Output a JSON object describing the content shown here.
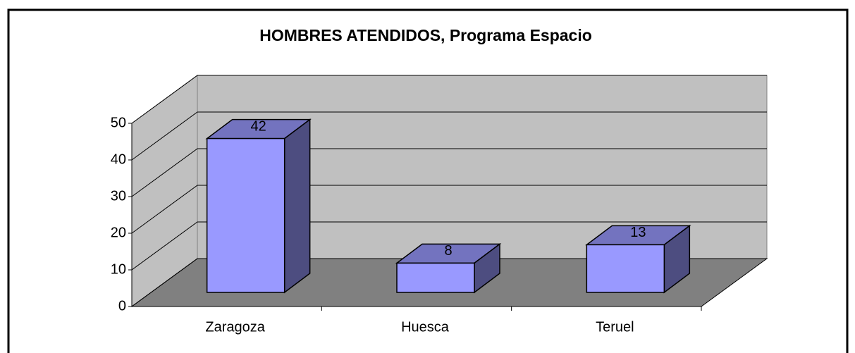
{
  "chart_data": {
    "type": "bar3d",
    "title": "HOMBRES ATENDIDOS, Programa Espacio",
    "categories": [
      "Zaragoza",
      "Huesca",
      "Teruel"
    ],
    "values": [
      42,
      8,
      13
    ],
    "color": "#9999ff",
    "ylim": [
      0,
      50
    ],
    "yticks": [
      0,
      10,
      20,
      30,
      40,
      50
    ],
    "grid": true
  }
}
